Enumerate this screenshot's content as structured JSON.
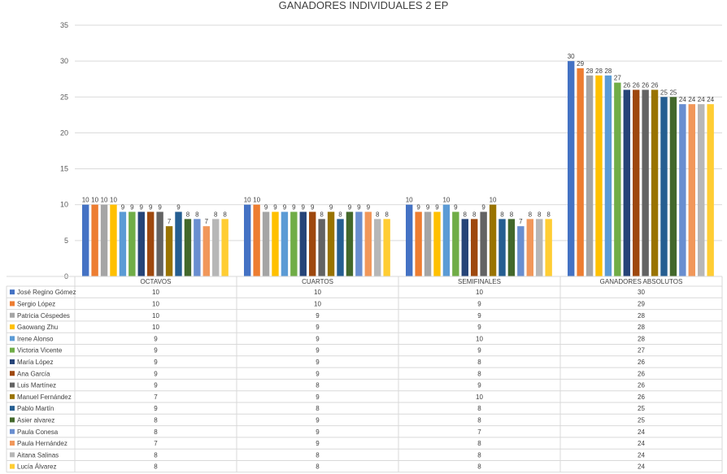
{
  "chart_data": {
    "type": "bar",
    "title": "GANADORES INDIVIDUALES 2 EP",
    "xlabel": "",
    "ylabel": "",
    "ylim": [
      0,
      35
    ],
    "yticks": [
      0,
      5,
      10,
      15,
      20,
      25,
      30,
      35
    ],
    "grid": true,
    "legend": "data-table",
    "categories": [
      "OCTAVOS",
      "CUARTOS",
      "SEMIFINALES",
      "GANADORES ABSOLUTOS"
    ],
    "series": [
      {
        "name": "José Regino Gómez",
        "color": "#4472C4",
        "values": [
          10,
          10,
          10,
          30
        ]
      },
      {
        "name": "Sergio López",
        "color": "#ED7D31",
        "values": [
          10,
          10,
          9,
          29
        ]
      },
      {
        "name": "Patricia Céspedes",
        "color": "#A5A5A5",
        "values": [
          10,
          9,
          9,
          28
        ]
      },
      {
        "name": "Gaowang Zhu",
        "color": "#FFC000",
        "values": [
          10,
          9,
          9,
          28
        ]
      },
      {
        "name": "Irene Alonso",
        "color": "#5B9BD5",
        "values": [
          9,
          9,
          10,
          28
        ]
      },
      {
        "name": "Victoria Vicente",
        "color": "#70AD47",
        "values": [
          9,
          9,
          9,
          27
        ]
      },
      {
        "name": "María López",
        "color": "#264478",
        "values": [
          9,
          9,
          8,
          26
        ]
      },
      {
        "name": "Ana García",
        "color": "#9E480E",
        "values": [
          9,
          9,
          8,
          26
        ]
      },
      {
        "name": "Luis Martínez",
        "color": "#636363",
        "values": [
          9,
          8,
          9,
          26
        ]
      },
      {
        "name": "Manuel Fernández",
        "color": "#997300",
        "values": [
          7,
          9,
          10,
          26
        ]
      },
      {
        "name": "Pablo Martín",
        "color": "#255E91",
        "values": [
          9,
          8,
          8,
          25
        ]
      },
      {
        "name": "Asier alvarez",
        "color": "#43682B",
        "values": [
          8,
          9,
          8,
          25
        ]
      },
      {
        "name": "Paula Conesa",
        "color": "#698ED0",
        "values": [
          8,
          9,
          7,
          24
        ]
      },
      {
        "name": "Paula  Hernández",
        "color": "#F1975A",
        "values": [
          7,
          9,
          8,
          24
        ]
      },
      {
        "name": "Aitana Salinas",
        "color": "#B7B7B7",
        "values": [
          8,
          8,
          8,
          24
        ]
      },
      {
        "name": "Lucía Álvarez",
        "color": "#FFCD33",
        "values": [
          8,
          8,
          8,
          24
        ]
      }
    ]
  }
}
